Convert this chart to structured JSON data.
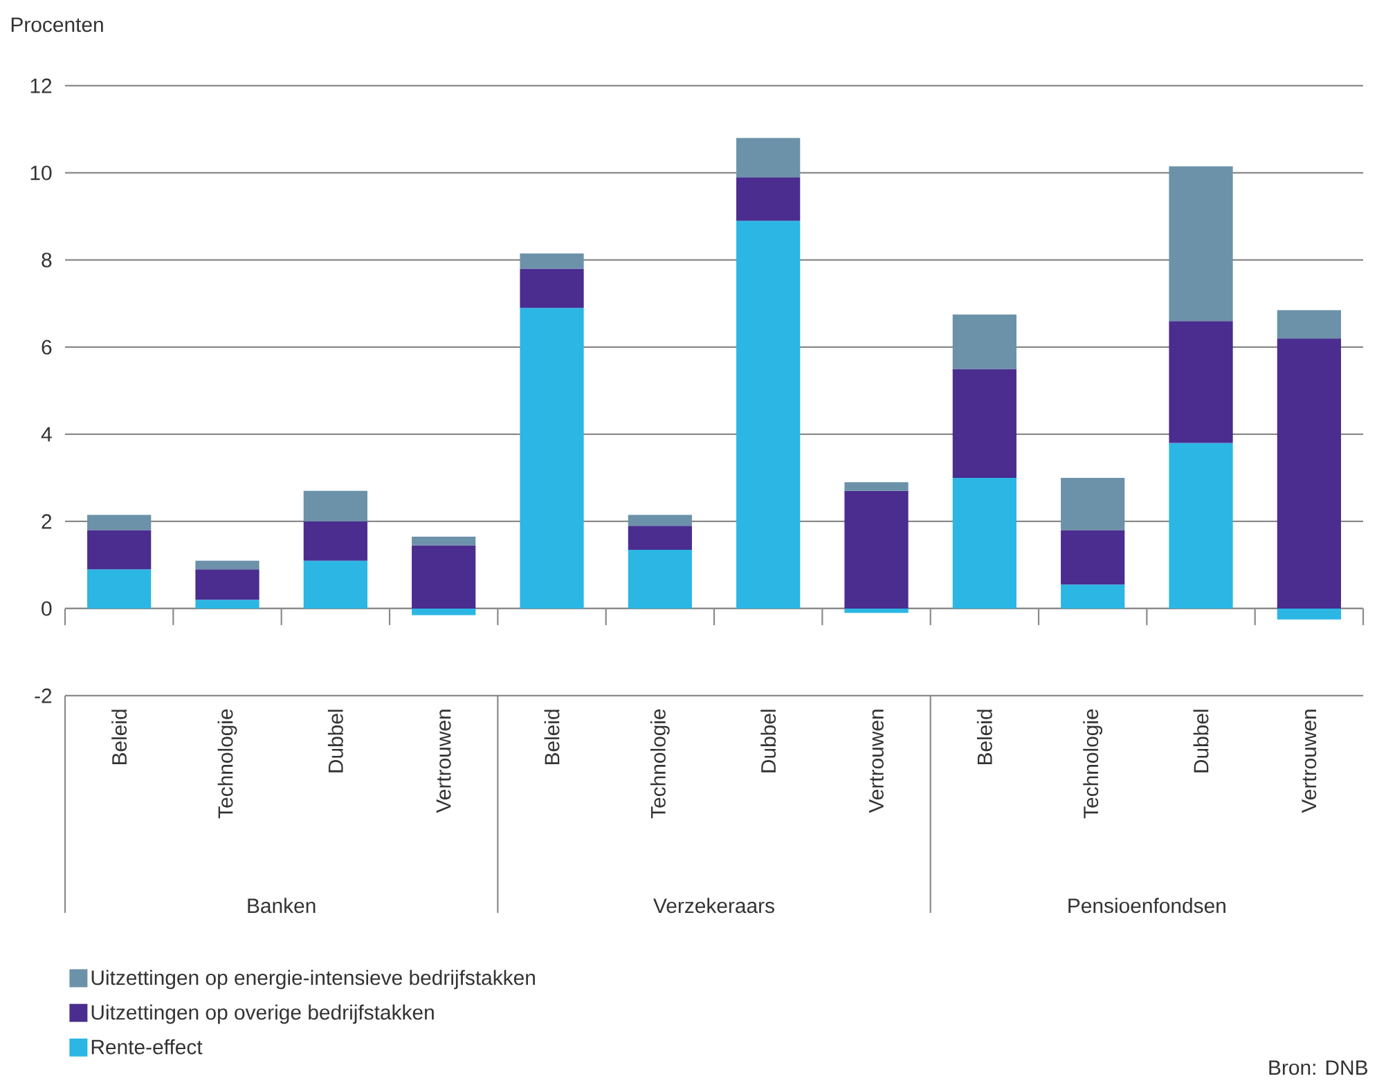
{
  "chart_data": {
    "type": "bar",
    "stacked": true,
    "ylabel": "Procenten",
    "categories": [
      "Beleid",
      "Technologie",
      "Dubbel",
      "Vertrouwen",
      "Beleid",
      "Technologie",
      "Dubbel",
      "Vertrouwen",
      "Beleid",
      "Technologie",
      "Dubbel",
      "Vertrouwen"
    ],
    "series": [
      {
        "name": "Rente-effect",
        "color": "#2bb6e4",
        "values": [
          0.9,
          0.2,
          1.1,
          -0.15,
          6.9,
          1.35,
          8.9,
          -0.1,
          3.0,
          0.55,
          3.8,
          -0.25
        ]
      },
      {
        "name": "Uitzettingen op overige bedrijfstakken",
        "color": "#4a2d8f",
        "values": [
          0.9,
          0.7,
          0.9,
          1.45,
          0.9,
          0.55,
          1.0,
          2.7,
          2.5,
          1.25,
          2.8,
          6.2
        ]
      },
      {
        "name": "Uitzettingen op energie-intensieve bedrijfstakken",
        "color": "#6b92a8",
        "values": [
          0.35,
          0.2,
          0.7,
          0.2,
          0.35,
          0.25,
          0.9,
          0.2,
          1.25,
          1.2,
          3.55,
          0.65
        ]
      }
    ],
    "ylim": [
      -2,
      12
    ],
    "yticks": [
      -2,
      0,
      2,
      4,
      6,
      8,
      10,
      12
    ],
    "grid": "y",
    "legend": "bottom left",
    "annotations": [
      "Banken",
      "Verzekeraars",
      "Pensioenfondsen",
      "Bron: DNB"
    ]
  }
}
